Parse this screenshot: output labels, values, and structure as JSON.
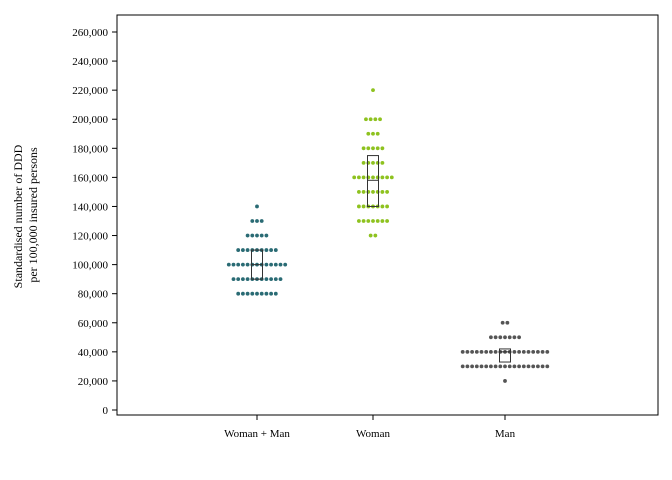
{
  "chart_data": {
    "type": "scatter",
    "subtype": "dot-plot-with-quartile-boxes",
    "title": "",
    "ylabel_lines": [
      "Standardised number of DDD",
      "per 100,000 insured persons"
    ],
    "ylim": [
      0,
      270000
    ],
    "yticks": [
      "0",
      "20,000",
      "40,000",
      "60,000",
      "80,000",
      "100,000",
      "120,000",
      "140,000",
      "160,000",
      "180,000",
      "200,000",
      "220,000",
      "240,000",
      "260,000"
    ],
    "ytick_values": [
      0,
      20000,
      40000,
      60000,
      80000,
      100000,
      120000,
      140000,
      160000,
      180000,
      200000,
      220000,
      240000,
      260000
    ],
    "grid": false,
    "categories": [
      "Woman + Man",
      "Woman",
      "Man"
    ],
    "series": [
      {
        "name": "Woman + Man",
        "color": "#2a6b74",
        "dot_counts": [
          [
            80000,
            9
          ],
          [
            90000,
            11
          ],
          [
            100000,
            13
          ],
          [
            110000,
            9
          ],
          [
            120000,
            5
          ],
          [
            130000,
            3
          ],
          [
            140000,
            1
          ]
        ],
        "box": {
          "q1": 90000,
          "median": 100000,
          "q3": 110000
        }
      },
      {
        "name": "Woman",
        "color": "#8ec21f",
        "dot_counts": [
          [
            120000,
            2
          ],
          [
            130000,
            7
          ],
          [
            140000,
            7
          ],
          [
            150000,
            7
          ],
          [
            160000,
            9
          ],
          [
            170000,
            5
          ],
          [
            180000,
            5
          ],
          [
            190000,
            3
          ],
          [
            200000,
            4
          ],
          [
            220000,
            1
          ]
        ],
        "box": {
          "q1": 140000,
          "median": 158000,
          "q3": 175000
        }
      },
      {
        "name": "Man",
        "color": "#555555",
        "dot_counts": [
          [
            20000,
            1
          ],
          [
            30000,
            19
          ],
          [
            40000,
            19
          ],
          [
            50000,
            7
          ],
          [
            60000,
            2
          ]
        ],
        "box": {
          "q1": 33000,
          "median": 40000,
          "q3": 42000
        }
      }
    ]
  }
}
